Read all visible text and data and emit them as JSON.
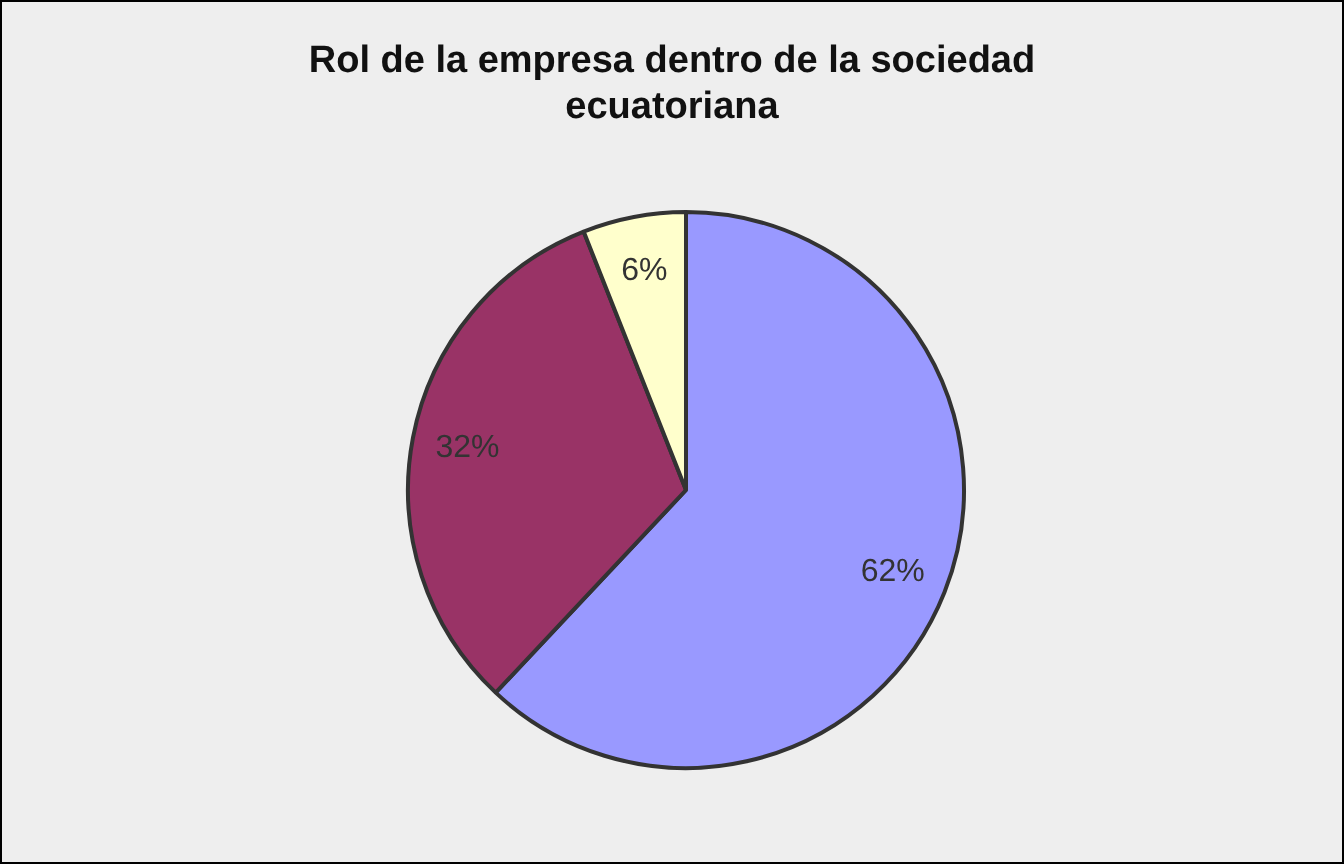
{
  "chart_data": {
    "type": "pie",
    "title": "Rol de la empresa dentro de la sociedad ecuatoriana",
    "categories": [
      null,
      null,
      null
    ],
    "values": [
      62,
      32,
      6
    ],
    "colors": [
      "#9999ff",
      "#993366",
      "#ffffcc"
    ],
    "value_labels": [
      "62%",
      "32%",
      "6%"
    ],
    "legend": false
  }
}
